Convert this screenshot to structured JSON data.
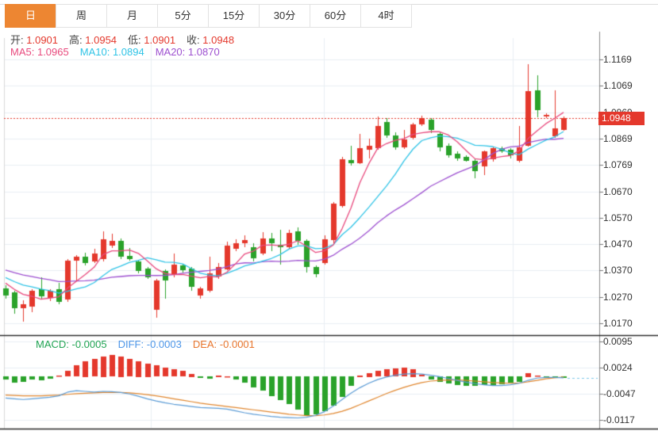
{
  "tabs": {
    "items": [
      {
        "label": "日",
        "active": true
      },
      {
        "label": "周",
        "active": false
      },
      {
        "label": "月",
        "active": false
      },
      {
        "label": "5分",
        "active": false
      },
      {
        "label": "15分",
        "active": false
      },
      {
        "label": "30分",
        "active": false
      },
      {
        "label": "60分",
        "active": false
      },
      {
        "label": "4时",
        "active": false
      }
    ]
  },
  "ohlc_legend": {
    "items": [
      {
        "label": "开:",
        "value": "1.0901"
      },
      {
        "label": "高:",
        "value": "1.0954"
      },
      {
        "label": "低:",
        "value": "1.0901"
      },
      {
        "label": "收:",
        "value": "1.0948"
      }
    ]
  },
  "ma_legend": {
    "items": [
      {
        "label": "MA5:",
        "value": "1.0965",
        "color": "#e8497d"
      },
      {
        "label": "MA10:",
        "value": "1.0894",
        "color": "#2ec3e6"
      },
      {
        "label": "MA20:",
        "value": "1.0870",
        "color": "#9d50d0"
      }
    ]
  },
  "macd_legend": {
    "items": [
      {
        "label": "MACD:",
        "value": "-0.0005",
        "color": "#21a453"
      },
      {
        "label": "DIFF:",
        "value": "-0.0003",
        "color": "#4d96e8"
      },
      {
        "label": "DEA:",
        "value": "-0.0001",
        "color": "#e8752c"
      }
    ]
  },
  "price_axis": {
    "current_tag": "1.0948"
  },
  "colors": {
    "up": "#e4382c",
    "down": "#2aa22a",
    "tab_active_bg": "#ed8632",
    "grid": "#e9eef3",
    "axis_line": "#8a8a8a",
    "separator": "#2b2b2b",
    "current_line": "#e4382c",
    "ma5": "#e8497d",
    "ma10": "#2ec3e6",
    "ma20": "#9d50d0",
    "diff_line": "#5b9bd5",
    "dea_line": "#e0862e",
    "projection_dash": "#7ec8e8"
  },
  "chart_data": [
    {
      "type": "candlestick",
      "y_ticks": [
        "1.1169",
        "1.1069",
        "1.0969",
        "1.0869",
        "1.0769",
        "1.0670",
        "1.0570",
        "1.0470",
        "1.0370",
        "1.0270",
        "1.0170"
      ],
      "ylim": [
        1.0137,
        1.125
      ],
      "current_price": 1.0948,
      "grid": true,
      "ma_periods": [
        5,
        10,
        20
      ],
      "prior_closes": [
        1.042,
        1.0415,
        1.041,
        1.0405,
        1.04,
        1.0395,
        1.0392,
        1.0388,
        1.0385,
        1.0382,
        1.038,
        1.037,
        1.0365,
        1.0355,
        1.035,
        1.0345,
        1.0335,
        1.033,
        1.0325
      ],
      "ohlc": [
        [
          1.0303,
          1.0315,
          1.0265,
          1.0274
        ],
        [
          1.0286,
          1.0294,
          1.0206,
          1.0226
        ],
        [
          1.0226,
          1.0256,
          1.0176,
          1.0241
        ],
        [
          1.0232,
          1.03,
          1.0214,
          1.0294
        ],
        [
          1.03,
          1.0345,
          1.0262,
          1.0271
        ],
        [
          1.0265,
          1.03,
          1.0256,
          1.0294
        ],
        [
          1.03,
          1.0324,
          1.0244,
          1.025
        ],
        [
          1.0259,
          1.0413,
          1.025,
          1.0407
        ],
        [
          1.0407,
          1.0428,
          1.0333,
          1.0422
        ],
        [
          1.0422,
          1.0437,
          1.0389,
          1.0398
        ],
        [
          1.0404,
          1.0452,
          1.0398,
          1.0434
        ],
        [
          1.0413,
          1.0517,
          1.0404,
          1.0487
        ],
        [
          1.0463,
          1.0508,
          1.0455,
          1.0481
        ],
        [
          1.0481,
          1.049,
          1.0413,
          1.0422
        ],
        [
          1.0425,
          1.0455,
          1.0407,
          1.0413
        ],
        [
          1.0404,
          1.041,
          1.036,
          1.0369
        ],
        [
          1.0377,
          1.0383,
          1.0339,
          1.0345
        ],
        [
          1.0221,
          1.0339,
          1.0191,
          1.0333
        ],
        [
          1.0369,
          1.0375,
          1.0265,
          1.0333
        ],
        [
          1.0354,
          1.0434,
          1.0345,
          1.0392
        ],
        [
          1.0389,
          1.0395,
          1.0363,
          1.0372
        ],
        [
          1.0377,
          1.0383,
          1.0294,
          1.0309
        ],
        [
          1.0274,
          1.0309,
          1.0265,
          1.0303
        ],
        [
          1.0294,
          1.0422,
          1.0286,
          1.036
        ],
        [
          1.0348,
          1.0398,
          1.0339,
          1.0383
        ],
        [
          1.0375,
          1.0478,
          1.0369,
          1.0463
        ],
        [
          1.0452,
          1.0487,
          1.0443,
          1.0472
        ],
        [
          1.0472,
          1.0502,
          1.0457,
          1.0484
        ],
        [
          1.0457,
          1.0472,
          1.0404,
          1.0416
        ],
        [
          1.0434,
          1.0514,
          1.0428,
          1.049
        ],
        [
          1.049,
          1.0511,
          1.0443,
          1.0472
        ],
        [
          1.0466,
          1.0525,
          1.0392,
          1.0457
        ],
        [
          1.0457,
          1.0523,
          1.0452,
          1.0511
        ],
        [
          1.0517,
          1.0532,
          1.0466,
          1.0481
        ],
        [
          1.0481,
          1.0487,
          1.036,
          1.0383
        ],
        [
          1.0383,
          1.0389,
          1.0345,
          1.0357
        ],
        [
          1.0398,
          1.0502,
          1.0392,
          1.0487
        ],
        [
          1.0484,
          1.063,
          1.0472,
          1.0624
        ],
        [
          1.0615,
          1.0799,
          1.0606,
          1.079
        ],
        [
          1.0787,
          1.0843,
          1.0769,
          1.0775
        ],
        [
          1.0777,
          1.0887,
          1.0772,
          1.0834
        ],
        [
          1.0828,
          1.087,
          1.0796,
          1.0843
        ],
        [
          1.0834,
          1.0953,
          1.0828,
          1.0917
        ],
        [
          1.0932,
          1.0947,
          1.0873,
          1.0882
        ],
        [
          1.0881,
          1.0893,
          1.0828,
          1.0837
        ],
        [
          1.0837,
          1.0902,
          1.0831,
          1.0867
        ],
        [
          1.0872,
          1.0929,
          1.0867,
          1.0923
        ],
        [
          1.0923,
          1.0956,
          1.0917,
          1.0947
        ],
        [
          1.0941,
          1.0947,
          1.089,
          1.0902
        ],
        [
          1.0887,
          1.0896,
          1.0822,
          1.0837
        ],
        [
          1.0843,
          1.0852,
          1.0799,
          1.0805
        ],
        [
          1.0813,
          1.0822,
          1.0787,
          1.0793
        ],
        [
          1.0799,
          1.0805,
          1.0781,
          1.0784
        ],
        [
          1.0784,
          1.079,
          1.0719,
          1.0745
        ],
        [
          1.0763,
          1.0825,
          1.0733,
          1.082
        ],
        [
          1.079,
          1.084,
          1.0784,
          1.0834
        ],
        [
          1.0834,
          1.084,
          1.0816,
          1.0822
        ],
        [
          1.0828,
          1.0834,
          1.0796,
          1.0805
        ],
        [
          1.0786,
          1.0917,
          1.078,
          1.0837
        ],
        [
          1.0843,
          1.1151,
          1.084,
          1.105
        ],
        [
          1.1053,
          1.111,
          1.0952,
          1.0976
        ],
        [
          1.0953,
          1.0964,
          1.0945,
          1.096
        ],
        [
          1.0879,
          1.1053,
          1.0873,
          1.0908
        ],
        [
          1.0901,
          1.0954,
          1.0901,
          1.0948
        ]
      ]
    },
    {
      "type": "bar",
      "name": "MACD",
      "y_ticks": [
        "0.0095",
        "0.0024",
        "-0.0047",
        "-0.0117"
      ],
      "ylim": [
        -0.0141,
        0.0108
      ],
      "values": [
        -0.0009,
        -0.0017,
        -0.0015,
        -0.0009,
        -0.0011,
        -0.0006,
        0.0002,
        0.0015,
        0.003,
        0.0042,
        0.0048,
        0.0055,
        0.0058,
        0.0055,
        0.0048,
        0.0042,
        0.0036,
        0.003,
        0.0024,
        0.002,
        0.0016,
        0.0008,
        -0.0004,
        -0.0006,
        0.0004,
        0.0001,
        -0.0008,
        -0.0018,
        -0.003,
        -0.0038,
        -0.0053,
        -0.0064,
        -0.0075,
        -0.0091,
        -0.0107,
        -0.0104,
        -0.0095,
        -0.008,
        -0.0055,
        -0.0025,
        0.0004,
        0.001,
        0.0016,
        0.002,
        0.0022,
        0.0024,
        0.0021,
        0.0005,
        -0.0008,
        -0.0014,
        -0.0019,
        -0.0024,
        -0.0026,
        -0.0026,
        -0.0024,
        -0.0023,
        -0.0021,
        -0.0018,
        -0.0014,
        0.001,
        0.0002,
        -0.0003,
        -0.0005,
        -0.0005
      ],
      "lines": [
        {
          "name": "DIFF",
          "values": [
            -0.0058,
            -0.006,
            -0.0062,
            -0.006,
            -0.0058,
            -0.0056,
            -0.0052,
            -0.0042,
            -0.0038,
            -0.004,
            -0.0042,
            -0.004,
            -0.0041,
            -0.0043,
            -0.0047,
            -0.0053,
            -0.006,
            -0.0066,
            -0.0071,
            -0.0075,
            -0.0078,
            -0.0081,
            -0.0084,
            -0.0085,
            -0.0086,
            -0.0088,
            -0.0093,
            -0.0098,
            -0.0102,
            -0.0105,
            -0.0108,
            -0.011,
            -0.0111,
            -0.0112,
            -0.011,
            -0.0105,
            -0.0095,
            -0.008,
            -0.0062,
            -0.0045,
            -0.003,
            -0.0018,
            -0.0008,
            -0.0001,
            0.0004,
            0.0007,
            0.0008,
            0.0007,
            0.0004,
            0.0,
            -0.0005,
            -0.001,
            -0.0015,
            -0.0019,
            -0.0022,
            -0.0024,
            -0.0024,
            -0.0022,
            -0.0018,
            -0.001,
            -0.0004,
            -0.0002,
            -0.0002,
            -0.0003
          ]
        },
        {
          "name": "DEA",
          "values": [
            -0.005,
            -0.0051,
            -0.0052,
            -0.0052,
            -0.0052,
            -0.0051,
            -0.005,
            -0.0048,
            -0.0046,
            -0.0045,
            -0.0044,
            -0.0043,
            -0.0043,
            -0.0043,
            -0.0044,
            -0.0046,
            -0.0049,
            -0.0052,
            -0.0056,
            -0.006,
            -0.0064,
            -0.0068,
            -0.0072,
            -0.0075,
            -0.0078,
            -0.0081,
            -0.0084,
            -0.0087,
            -0.009,
            -0.0093,
            -0.0096,
            -0.0099,
            -0.0102,
            -0.0104,
            -0.0106,
            -0.0106,
            -0.0104,
            -0.01,
            -0.0094,
            -0.0086,
            -0.0076,
            -0.0066,
            -0.0056,
            -0.0046,
            -0.0037,
            -0.0029,
            -0.0022,
            -0.0016,
            -0.0012,
            -0.001,
            -0.0009,
            -0.0009,
            -0.001,
            -0.0012,
            -0.0014,
            -0.0016,
            -0.0017,
            -0.0018,
            -0.0017,
            -0.0014,
            -0.001,
            -0.0006,
            -0.0003,
            -0.0001
          ]
        }
      ]
    }
  ]
}
